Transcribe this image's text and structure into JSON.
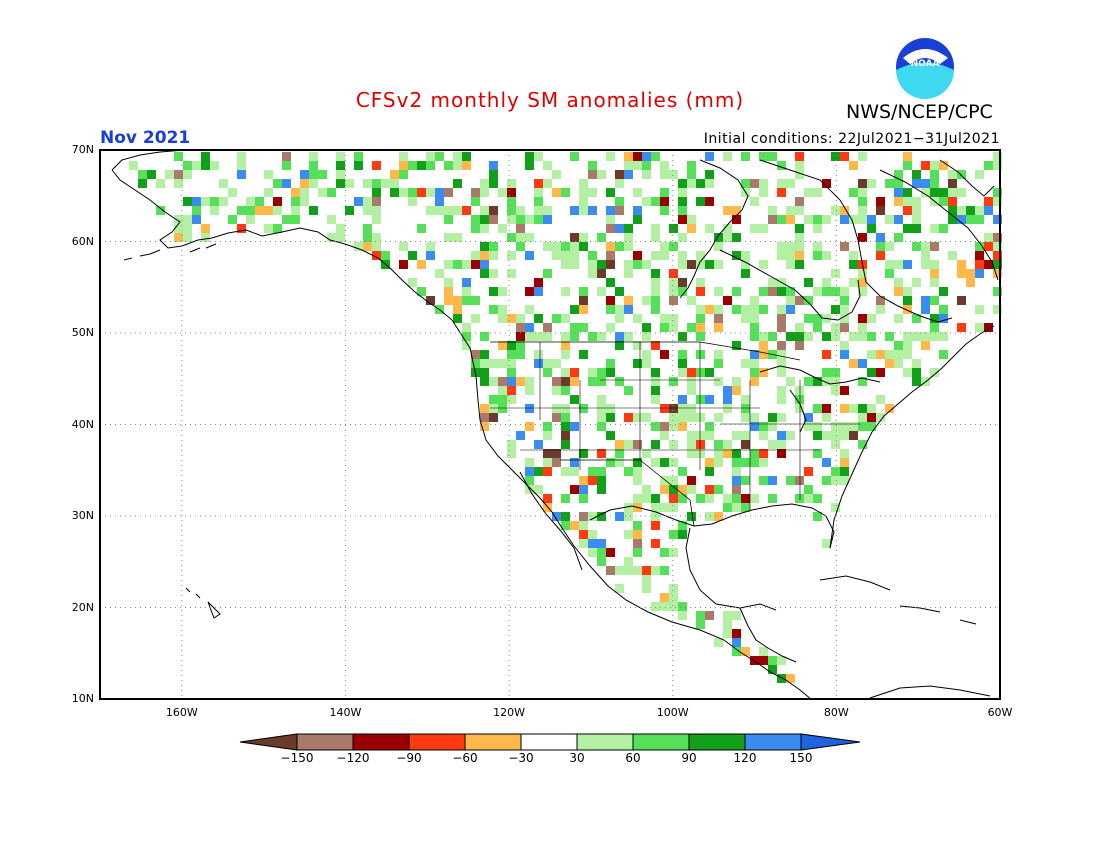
{
  "header": {
    "title": "CFSv2 monthly SM anomalies (mm)",
    "agency": "NWS/NCEP/CPC",
    "month": "Nov 2021",
    "initial_conditions": "Initial conditions: 22Jul2021−31Jul2021",
    "logo_text": "NOAA"
  },
  "map": {
    "lon_range": [
      -170,
      -60
    ],
    "lat_range": [
      10,
      70
    ],
    "lat_labels": [
      "70N",
      "60N",
      "50N",
      "40N",
      "30N",
      "20N",
      "10N"
    ],
    "lon_labels": [
      "160W",
      "140W",
      "120W",
      "100W",
      "80W",
      "60W"
    ],
    "gridlines": "dotted"
  },
  "colorbar": {
    "labels": [
      "−150",
      "−120",
      "−90",
      "−60",
      "−30",
      "30",
      "60",
      "90",
      "120",
      "150"
    ],
    "colors": [
      "#6b3a2a",
      "#a97a6a",
      "#9a0000",
      "#ff3a10",
      "#ffb84a",
      "#ffffff",
      "#b4f0a4",
      "#56e05a",
      "#12a01a",
      "#3a8cf0",
      "#1e64dc"
    ]
  },
  "colors": {
    "title": "#e00000",
    "month": "#1a3fd6"
  }
}
